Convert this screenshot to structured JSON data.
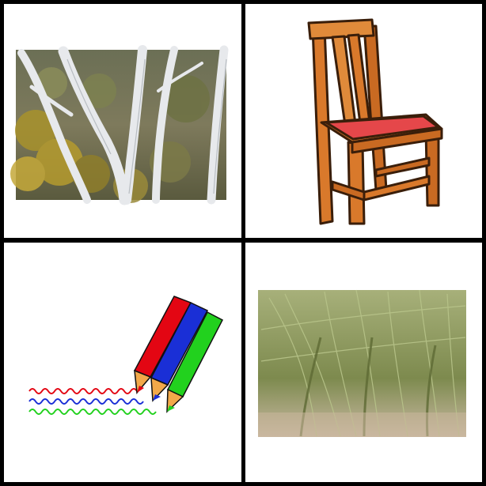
{
  "grid": {
    "cells": [
      {
        "subject": "birch-trees-photo"
      },
      {
        "subject": "wooden-chair-illustration"
      },
      {
        "subject": "colored-pencils-illustration"
      },
      {
        "subject": "green-shrub-photo"
      }
    ]
  },
  "colors": {
    "border": "#000000",
    "chair_wood": "#d9792b",
    "chair_seat": "#e5474a",
    "pencil_red": "#e30613",
    "pencil_blue": "#1a2fd6",
    "pencil_green": "#22d11e"
  }
}
